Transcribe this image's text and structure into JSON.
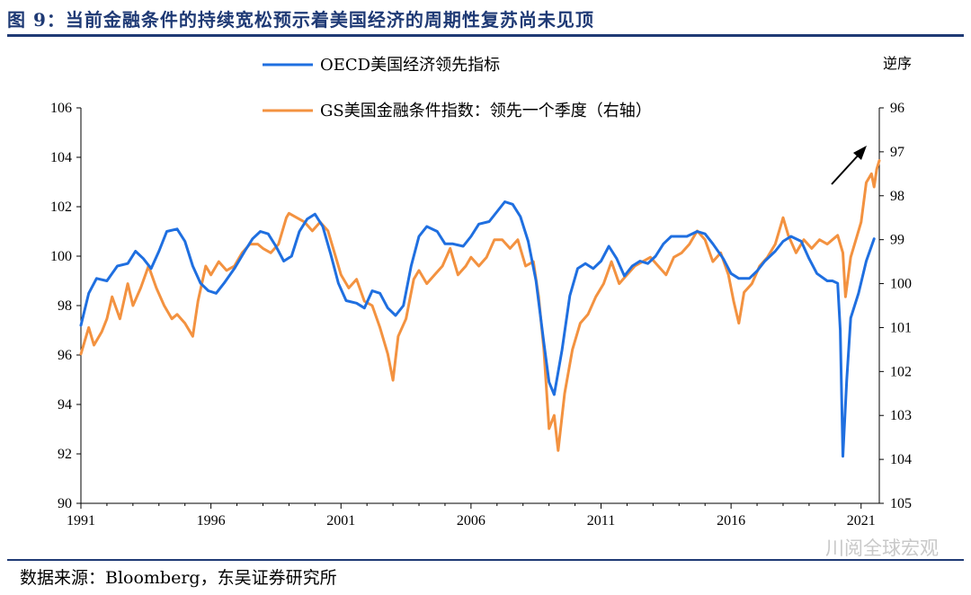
{
  "figure": {
    "title": "图 9：当前金融条件的持续宽松预示着美国经济的周期性复苏尚未见顶",
    "source": "数据来源：Bloomberg，东吴证券研究所",
    "watermark": "川阅全球宏观"
  },
  "chart_data": {
    "type": "line",
    "title": "",
    "x_ticks": [
      "1991",
      "1996",
      "2001",
      "2006",
      "2011",
      "2016",
      "2021"
    ],
    "x_range": [
      1991,
      2021.7
    ],
    "left_axis": {
      "label": "",
      "range": [
        90,
        106
      ],
      "ticks": [
        90,
        92,
        94,
        96,
        98,
        100,
        102,
        104,
        106
      ]
    },
    "right_axis": {
      "label": "逆序",
      "range": [
        96,
        105
      ],
      "inverted": true,
      "ticks": [
        96,
        97,
        98,
        99,
        100,
        101,
        102,
        103,
        104,
        105
      ]
    },
    "legend_placement": "top-center",
    "annotation": "arrow pointing up-right near the end of the GS series",
    "colors": {
      "oecd": "#1f6fe0",
      "gs": "#f39240"
    },
    "series": [
      {
        "name": "OECD美国经济领先指标",
        "axis": "left",
        "points": [
          [
            1991.0,
            97.2
          ],
          [
            1991.3,
            98.5
          ],
          [
            1991.6,
            99.1
          ],
          [
            1992.0,
            99.0
          ],
          [
            1992.4,
            99.6
          ],
          [
            1992.8,
            99.7
          ],
          [
            1993.1,
            100.2
          ],
          [
            1993.4,
            99.9
          ],
          [
            1993.7,
            99.5
          ],
          [
            1994.0,
            100.2
          ],
          [
            1994.3,
            101.0
          ],
          [
            1994.7,
            101.1
          ],
          [
            1995.0,
            100.6
          ],
          [
            1995.3,
            99.6
          ],
          [
            1995.6,
            98.9
          ],
          [
            1995.9,
            98.6
          ],
          [
            1996.2,
            98.5
          ],
          [
            1996.5,
            98.9
          ],
          [
            1996.9,
            99.5
          ],
          [
            1997.3,
            100.2
          ],
          [
            1997.6,
            100.7
          ],
          [
            1997.9,
            101.0
          ],
          [
            1998.2,
            100.9
          ],
          [
            1998.5,
            100.4
          ],
          [
            1998.8,
            99.8
          ],
          [
            1999.1,
            100.0
          ],
          [
            1999.4,
            101.0
          ],
          [
            1999.7,
            101.5
          ],
          [
            2000.0,
            101.7
          ],
          [
            2000.3,
            101.2
          ],
          [
            2000.6,
            100.1
          ],
          [
            2000.9,
            98.9
          ],
          [
            2001.2,
            98.2
          ],
          [
            2001.6,
            98.1
          ],
          [
            2001.9,
            97.9
          ],
          [
            2002.2,
            98.6
          ],
          [
            2002.5,
            98.5
          ],
          [
            2002.8,
            97.9
          ],
          [
            2003.1,
            97.6
          ],
          [
            2003.4,
            98.0
          ],
          [
            2003.7,
            99.6
          ],
          [
            2004.0,
            100.8
          ],
          [
            2004.3,
            101.2
          ],
          [
            2004.7,
            101.0
          ],
          [
            2005.0,
            100.5
          ],
          [
            2005.3,
            100.5
          ],
          [
            2005.7,
            100.4
          ],
          [
            2006.0,
            100.8
          ],
          [
            2006.3,
            101.3
          ],
          [
            2006.7,
            101.4
          ],
          [
            2007.0,
            101.8
          ],
          [
            2007.3,
            102.2
          ],
          [
            2007.6,
            102.1
          ],
          [
            2007.9,
            101.6
          ],
          [
            2008.2,
            100.6
          ],
          [
            2008.5,
            99.0
          ],
          [
            2008.8,
            96.5
          ],
          [
            2009.0,
            94.9
          ],
          [
            2009.2,
            94.4
          ],
          [
            2009.5,
            96.2
          ],
          [
            2009.8,
            98.4
          ],
          [
            2010.1,
            99.5
          ],
          [
            2010.4,
            99.7
          ],
          [
            2010.7,
            99.5
          ],
          [
            2011.0,
            99.8
          ],
          [
            2011.3,
            100.4
          ],
          [
            2011.6,
            99.9
          ],
          [
            2011.9,
            99.2
          ],
          [
            2012.2,
            99.6
          ],
          [
            2012.5,
            99.8
          ],
          [
            2012.8,
            99.7
          ],
          [
            2013.1,
            100.0
          ],
          [
            2013.4,
            100.5
          ],
          [
            2013.7,
            100.8
          ],
          [
            2014.0,
            100.8
          ],
          [
            2014.3,
            100.8
          ],
          [
            2014.7,
            101.0
          ],
          [
            2015.0,
            100.9
          ],
          [
            2015.3,
            100.5
          ],
          [
            2015.7,
            99.9
          ],
          [
            2016.0,
            99.3
          ],
          [
            2016.3,
            99.1
          ],
          [
            2016.7,
            99.1
          ],
          [
            2017.0,
            99.4
          ],
          [
            2017.3,
            99.8
          ],
          [
            2017.7,
            100.2
          ],
          [
            2018.0,
            100.6
          ],
          [
            2018.3,
            100.8
          ],
          [
            2018.7,
            100.6
          ],
          [
            2019.0,
            99.9
          ],
          [
            2019.3,
            99.3
          ],
          [
            2019.7,
            99.0
          ],
          [
            2019.9,
            99.0
          ],
          [
            2020.1,
            98.9
          ],
          [
            2020.2,
            97.0
          ],
          [
            2020.3,
            91.9
          ],
          [
            2020.45,
            95.0
          ],
          [
            2020.6,
            97.5
          ],
          [
            2020.9,
            98.5
          ],
          [
            2021.2,
            99.8
          ],
          [
            2021.5,
            100.7
          ]
        ]
      },
      {
        "name": "GS美国金融条件指数：领先一个季度（右轴）",
        "axis": "right",
        "points": [
          [
            1991.0,
            101.6
          ],
          [
            1991.3,
            101.0
          ],
          [
            1991.5,
            101.4
          ],
          [
            1991.8,
            101.1
          ],
          [
            1992.0,
            100.8
          ],
          [
            1992.2,
            100.3
          ],
          [
            1992.5,
            100.8
          ],
          [
            1992.8,
            100.0
          ],
          [
            1993.0,
            100.5
          ],
          [
            1993.3,
            100.1
          ],
          [
            1993.6,
            99.6
          ],
          [
            1993.9,
            100.1
          ],
          [
            1994.2,
            100.5
          ],
          [
            1994.5,
            100.8
          ],
          [
            1994.7,
            100.7
          ],
          [
            1995.0,
            100.9
          ],
          [
            1995.3,
            101.2
          ],
          [
            1995.5,
            100.4
          ],
          [
            1995.8,
            99.6
          ],
          [
            1996.0,
            99.8
          ],
          [
            1996.3,
            99.5
          ],
          [
            1996.6,
            99.7
          ],
          [
            1996.9,
            99.6
          ],
          [
            1997.2,
            99.3
          ],
          [
            1997.5,
            99.1
          ],
          [
            1997.8,
            99.1
          ],
          [
            1998.0,
            99.2
          ],
          [
            1998.3,
            99.3
          ],
          [
            1998.6,
            99.1
          ],
          [
            1998.9,
            98.5
          ],
          [
            1999.0,
            98.4
          ],
          [
            1999.3,
            98.5
          ],
          [
            1999.6,
            98.6
          ],
          [
            1999.9,
            98.8
          ],
          [
            2000.2,
            98.6
          ],
          [
            2000.5,
            98.8
          ],
          [
            2000.8,
            99.4
          ],
          [
            2001.0,
            99.8
          ],
          [
            2001.3,
            100.1
          ],
          [
            2001.6,
            99.9
          ],
          [
            2001.9,
            100.4
          ],
          [
            2002.2,
            100.5
          ],
          [
            2002.5,
            101.0
          ],
          [
            2002.8,
            101.6
          ],
          [
            2003.0,
            102.2
          ],
          [
            2003.2,
            101.2
          ],
          [
            2003.5,
            100.8
          ],
          [
            2003.8,
            99.9
          ],
          [
            2004.0,
            99.7
          ],
          [
            2004.3,
            100.0
          ],
          [
            2004.6,
            99.8
          ],
          [
            2004.9,
            99.6
          ],
          [
            2005.2,
            99.2
          ],
          [
            2005.5,
            99.8
          ],
          [
            2005.8,
            99.6
          ],
          [
            2006.0,
            99.4
          ],
          [
            2006.3,
            99.6
          ],
          [
            2006.6,
            99.4
          ],
          [
            2006.9,
            99.0
          ],
          [
            2007.2,
            99.0
          ],
          [
            2007.5,
            99.2
          ],
          [
            2007.8,
            99.0
          ],
          [
            2008.1,
            99.6
          ],
          [
            2008.4,
            99.5
          ],
          [
            2008.6,
            100.3
          ],
          [
            2008.8,
            101.5
          ],
          [
            2009.0,
            103.3
          ],
          [
            2009.2,
            103.0
          ],
          [
            2009.35,
            103.8
          ],
          [
            2009.6,
            102.5
          ],
          [
            2009.9,
            101.5
          ],
          [
            2010.2,
            100.9
          ],
          [
            2010.5,
            100.7
          ],
          [
            2010.8,
            100.3
          ],
          [
            2011.1,
            100.0
          ],
          [
            2011.4,
            99.5
          ],
          [
            2011.7,
            100.0
          ],
          [
            2012.0,
            99.8
          ],
          [
            2012.3,
            99.6
          ],
          [
            2012.6,
            99.5
          ],
          [
            2012.9,
            99.4
          ],
          [
            2013.2,
            99.6
          ],
          [
            2013.5,
            99.8
          ],
          [
            2013.8,
            99.4
          ],
          [
            2014.1,
            99.3
          ],
          [
            2014.4,
            99.1
          ],
          [
            2014.7,
            98.8
          ],
          [
            2015.0,
            99.0
          ],
          [
            2015.3,
            99.5
          ],
          [
            2015.6,
            99.3
          ],
          [
            2015.9,
            99.8
          ],
          [
            2016.1,
            100.4
          ],
          [
            2016.3,
            100.9
          ],
          [
            2016.5,
            100.2
          ],
          [
            2016.8,
            100.0
          ],
          [
            2017.1,
            99.6
          ],
          [
            2017.4,
            99.4
          ],
          [
            2017.7,
            99.1
          ],
          [
            2018.0,
            98.5
          ],
          [
            2018.2,
            98.9
          ],
          [
            2018.5,
            99.3
          ],
          [
            2018.8,
            99.0
          ],
          [
            2019.1,
            99.2
          ],
          [
            2019.4,
            99.0
          ],
          [
            2019.7,
            99.1
          ],
          [
            2019.9,
            99.0
          ],
          [
            2020.1,
            98.9
          ],
          [
            2020.3,
            99.3
          ],
          [
            2020.4,
            100.3
          ],
          [
            2020.6,
            99.4
          ],
          [
            2020.8,
            99.0
          ],
          [
            2021.0,
            98.6
          ],
          [
            2021.2,
            97.7
          ],
          [
            2021.4,
            97.5
          ],
          [
            2021.5,
            97.8
          ],
          [
            2021.6,
            97.4
          ],
          [
            2021.7,
            97.2
          ]
        ]
      }
    ]
  }
}
